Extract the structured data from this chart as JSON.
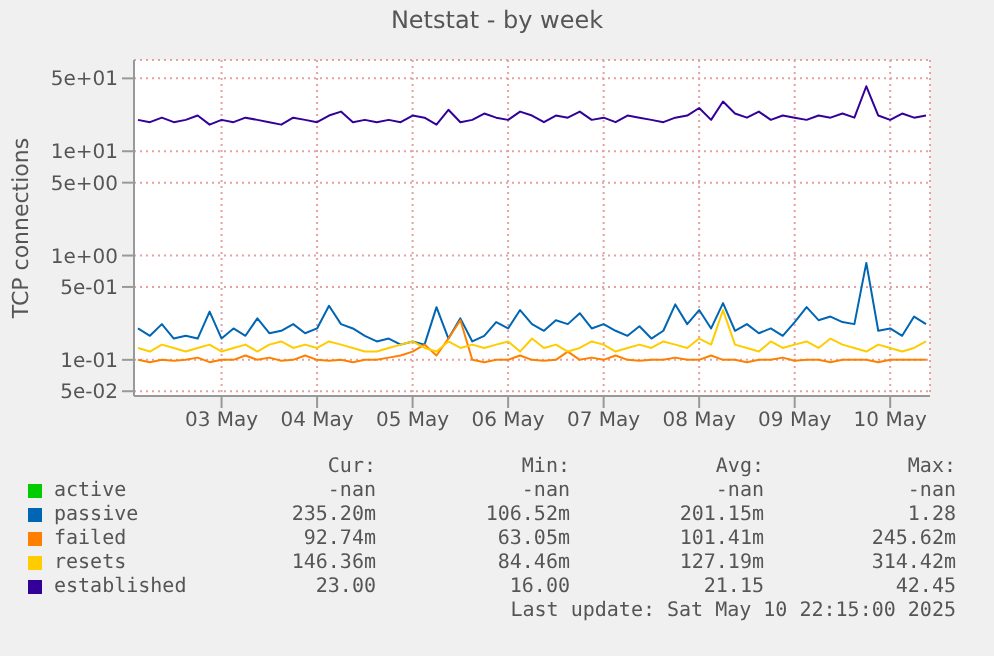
{
  "chart_data": {
    "type": "line",
    "title": "Netstat - by week",
    "ylabel": "TCP connections",
    "log": "y",
    "grid": true,
    "legend": "bottom",
    "marker": "none",
    "line_style": "solid",
    "xlim": [
      "2025-05-02T14:00",
      "2025-05-10T22:00"
    ],
    "xticks": [
      {
        "value": "2025-05-03T12:00",
        "label": "03 May"
      },
      {
        "value": "2025-05-04T12:00",
        "label": "04 May"
      },
      {
        "value": "2025-05-05T12:00",
        "label": "05 May"
      },
      {
        "value": "2025-05-06T12:00",
        "label": "06 May"
      },
      {
        "value": "2025-05-07T12:00",
        "label": "07 May"
      },
      {
        "value": "2025-05-08T12:00",
        "label": "08 May"
      },
      {
        "value": "2025-05-09T12:00",
        "label": "09 May"
      },
      {
        "value": "2025-05-10T12:00",
        "label": "10 May"
      }
    ],
    "ylim": [
      0.045,
      75
    ],
    "yticks": [
      {
        "value": 0.05,
        "label": "5e-02"
      },
      {
        "value": 0.1,
        "label": "1e-01"
      },
      {
        "value": 0.5,
        "label": "5e-01"
      },
      {
        "value": 1,
        "label": "1e+00"
      },
      {
        "value": 5,
        "label": "5e+00"
      },
      {
        "value": 10,
        "label": "1e+01"
      },
      {
        "value": 50,
        "label": "5e+01"
      }
    ],
    "x": [
      "2025-05-02T15:00",
      "2025-05-02T18:00",
      "2025-05-02T21:00",
      "2025-05-03T00:00",
      "2025-05-03T03:00",
      "2025-05-03T06:00",
      "2025-05-03T09:00",
      "2025-05-03T12:00",
      "2025-05-03T15:00",
      "2025-05-03T18:00",
      "2025-05-03T21:00",
      "2025-05-04T00:00",
      "2025-05-04T03:00",
      "2025-05-04T06:00",
      "2025-05-04T09:00",
      "2025-05-04T12:00",
      "2025-05-04T15:00",
      "2025-05-04T18:00",
      "2025-05-04T21:00",
      "2025-05-05T00:00",
      "2025-05-05T03:00",
      "2025-05-05T06:00",
      "2025-05-05T09:00",
      "2025-05-05T12:00",
      "2025-05-05T15:00",
      "2025-05-05T18:00",
      "2025-05-05T21:00",
      "2025-05-06T00:00",
      "2025-05-06T03:00",
      "2025-05-06T06:00",
      "2025-05-06T09:00",
      "2025-05-06T12:00",
      "2025-05-06T15:00",
      "2025-05-06T18:00",
      "2025-05-06T21:00",
      "2025-05-07T00:00",
      "2025-05-07T03:00",
      "2025-05-07T06:00",
      "2025-05-07T09:00",
      "2025-05-07T12:00",
      "2025-05-07T15:00",
      "2025-05-07T18:00",
      "2025-05-07T21:00",
      "2025-05-08T00:00",
      "2025-05-08T03:00",
      "2025-05-08T06:00",
      "2025-05-08T09:00",
      "2025-05-08T12:00",
      "2025-05-08T15:00",
      "2025-05-08T18:00",
      "2025-05-08T21:00",
      "2025-05-09T00:00",
      "2025-05-09T03:00",
      "2025-05-09T06:00",
      "2025-05-09T09:00",
      "2025-05-09T12:00",
      "2025-05-09T15:00",
      "2025-05-09T18:00",
      "2025-05-09T21:00",
      "2025-05-10T00:00",
      "2025-05-10T03:00",
      "2025-05-10T06:00",
      "2025-05-10T09:00",
      "2025-05-10T12:00",
      "2025-05-10T15:00",
      "2025-05-10T18:00",
      "2025-05-10T21:00"
    ],
    "series": [
      {
        "name": "active",
        "color": "#00cc00",
        "values": [
          null,
          null,
          null,
          null,
          null,
          null,
          null,
          null,
          null,
          null,
          null,
          null,
          null,
          null,
          null,
          null,
          null,
          null,
          null,
          null,
          null,
          null,
          null,
          null,
          null,
          null,
          null,
          null,
          null,
          null,
          null,
          null,
          null,
          null,
          null,
          null,
          null,
          null,
          null,
          null,
          null,
          null,
          null,
          null,
          null,
          null,
          null,
          null,
          null,
          null,
          null,
          null,
          null,
          null,
          null,
          null,
          null,
          null,
          null,
          null,
          null,
          null,
          null,
          null,
          null,
          null,
          null
        ]
      },
      {
        "name": "passive",
        "color": "#0066b3",
        "values": [
          0.2,
          0.17,
          0.22,
          0.16,
          0.17,
          0.16,
          0.29,
          0.16,
          0.2,
          0.17,
          0.25,
          0.18,
          0.19,
          0.22,
          0.18,
          0.2,
          0.33,
          0.22,
          0.2,
          0.17,
          0.15,
          0.16,
          0.14,
          0.15,
          0.14,
          0.32,
          0.16,
          0.25,
          0.15,
          0.17,
          0.23,
          0.2,
          0.3,
          0.22,
          0.19,
          0.24,
          0.22,
          0.28,
          0.2,
          0.22,
          0.19,
          0.17,
          0.21,
          0.16,
          0.19,
          0.34,
          0.22,
          0.3,
          0.2,
          0.35,
          0.19,
          0.22,
          0.18,
          0.2,
          0.17,
          0.23,
          0.32,
          0.24,
          0.26,
          0.23,
          0.22,
          0.85,
          0.19,
          0.2,
          0.17,
          0.26,
          0.22
        ]
      },
      {
        "name": "failed",
        "color": "#ff8000",
        "values": [
          0.1,
          0.095,
          0.1,
          0.098,
          0.1,
          0.105,
          0.095,
          0.1,
          0.1,
          0.11,
          0.1,
          0.105,
          0.098,
          0.1,
          0.11,
          0.1,
          0.098,
          0.1,
          0.095,
          0.1,
          0.1,
          0.105,
          0.11,
          0.12,
          0.14,
          0.11,
          0.16,
          0.24,
          0.1,
          0.095,
          0.1,
          0.1,
          0.11,
          0.1,
          0.098,
          0.1,
          0.12,
          0.1,
          0.105,
          0.1,
          0.11,
          0.1,
          0.098,
          0.1,
          0.1,
          0.105,
          0.1,
          0.1,
          0.11,
          0.1,
          0.1,
          0.095,
          0.1,
          0.1,
          0.105,
          0.098,
          0.1,
          0.1,
          0.095,
          0.1,
          0.1,
          0.1,
          0.095,
          0.1,
          0.1,
          0.1,
          0.1
        ]
      },
      {
        "name": "resets",
        "color": "#ffcc00",
        "values": [
          0.13,
          0.12,
          0.14,
          0.13,
          0.12,
          0.13,
          0.14,
          0.12,
          0.13,
          0.14,
          0.12,
          0.14,
          0.15,
          0.13,
          0.14,
          0.13,
          0.15,
          0.14,
          0.13,
          0.12,
          0.12,
          0.13,
          0.14,
          0.15,
          0.13,
          0.12,
          0.15,
          0.13,
          0.14,
          0.13,
          0.14,
          0.15,
          0.12,
          0.16,
          0.13,
          0.14,
          0.12,
          0.13,
          0.15,
          0.14,
          0.12,
          0.13,
          0.14,
          0.13,
          0.15,
          0.14,
          0.13,
          0.16,
          0.14,
          0.3,
          0.14,
          0.13,
          0.12,
          0.15,
          0.13,
          0.14,
          0.15,
          0.13,
          0.16,
          0.14,
          0.13,
          0.12,
          0.14,
          0.13,
          0.12,
          0.13,
          0.15
        ]
      },
      {
        "name": "established",
        "color": "#330099",
        "values": [
          20,
          19,
          21,
          19,
          20,
          22,
          18,
          20,
          19,
          21,
          20,
          19,
          18,
          21,
          20,
          19,
          22,
          24,
          19,
          20,
          19,
          20,
          19,
          22,
          21,
          18,
          25,
          19,
          20,
          23,
          21,
          20,
          24,
          22,
          19,
          22,
          21,
          24,
          20,
          21,
          19,
          22,
          21,
          20,
          19,
          21,
          22,
          26,
          20,
          30,
          23,
          21,
          24,
          20,
          22,
          21,
          20,
          22,
          21,
          23,
          21,
          42,
          22,
          20,
          23,
          21,
          22
        ]
      }
    ],
    "annotations": [
      "Cur:",
      "Min:",
      "Avg:",
      "Max:",
      "-nan",
      "-nan",
      "-nan",
      "-nan",
      "235.20m",
      "106.52m",
      "201.15m",
      "1.28",
      "92.74m",
      "63.05m",
      "101.41m",
      "245.62m",
      "146.36m",
      "84.46m",
      "127.19m",
      "314.42m",
      "23.00",
      "16.00",
      "21.15",
      "42.45",
      "Last update: Sat May 10 22:15:00 2025"
    ]
  }
}
